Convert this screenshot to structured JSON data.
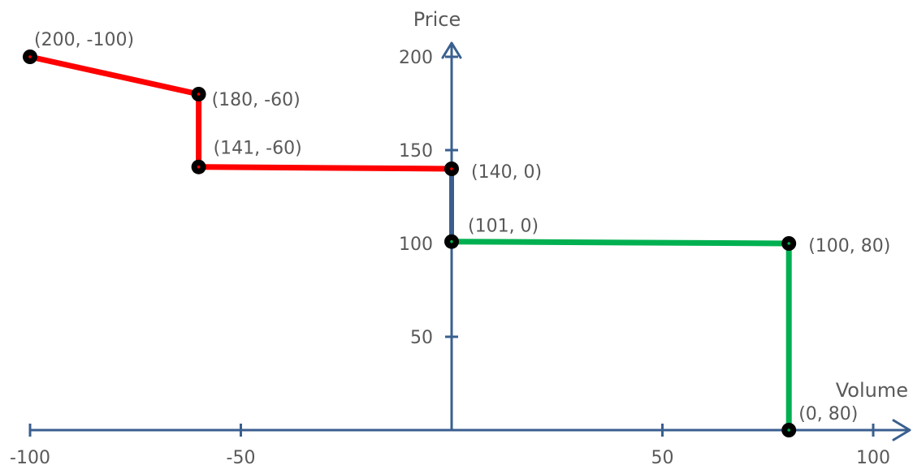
{
  "chart_data": {
    "type": "line",
    "title": "",
    "xlabel": "Volume",
    "ylabel": "Price",
    "xlim": [
      -100,
      100
    ],
    "ylim": [
      0,
      200
    ],
    "x_ticks": [
      -100,
      -50,
      50,
      100
    ],
    "x_tick_labels": [
      "-100",
      "-50",
      "50",
      "100"
    ],
    "y_ticks": [
      50,
      100,
      150,
      200
    ],
    "y_tick_labels": [
      "50",
      "100",
      "150",
      "200"
    ],
    "grid": false,
    "legend": "none",
    "axis_color": "#3a5f8f",
    "series": [
      {
        "color": "#ff0000",
        "points": [
          {
            "x": -100,
            "y": 200,
            "label": "(200, -100)"
          },
          {
            "x": -60,
            "y": 180,
            "label": "(180, -60)"
          },
          {
            "x": -60,
            "y": 141,
            "label": "(141, -60)"
          },
          {
            "x": 0,
            "y": 140,
            "label": "(140, 0)"
          }
        ]
      },
      {
        "color": "#00b050",
        "points": [
          {
            "x": 0,
            "y": 101,
            "label": "(101, 0)"
          },
          {
            "x": 80,
            "y": 100,
            "label": "(100, 80)"
          },
          {
            "x": 80,
            "y": 0,
            "label": "(0, 80)"
          }
        ]
      }
    ]
  }
}
